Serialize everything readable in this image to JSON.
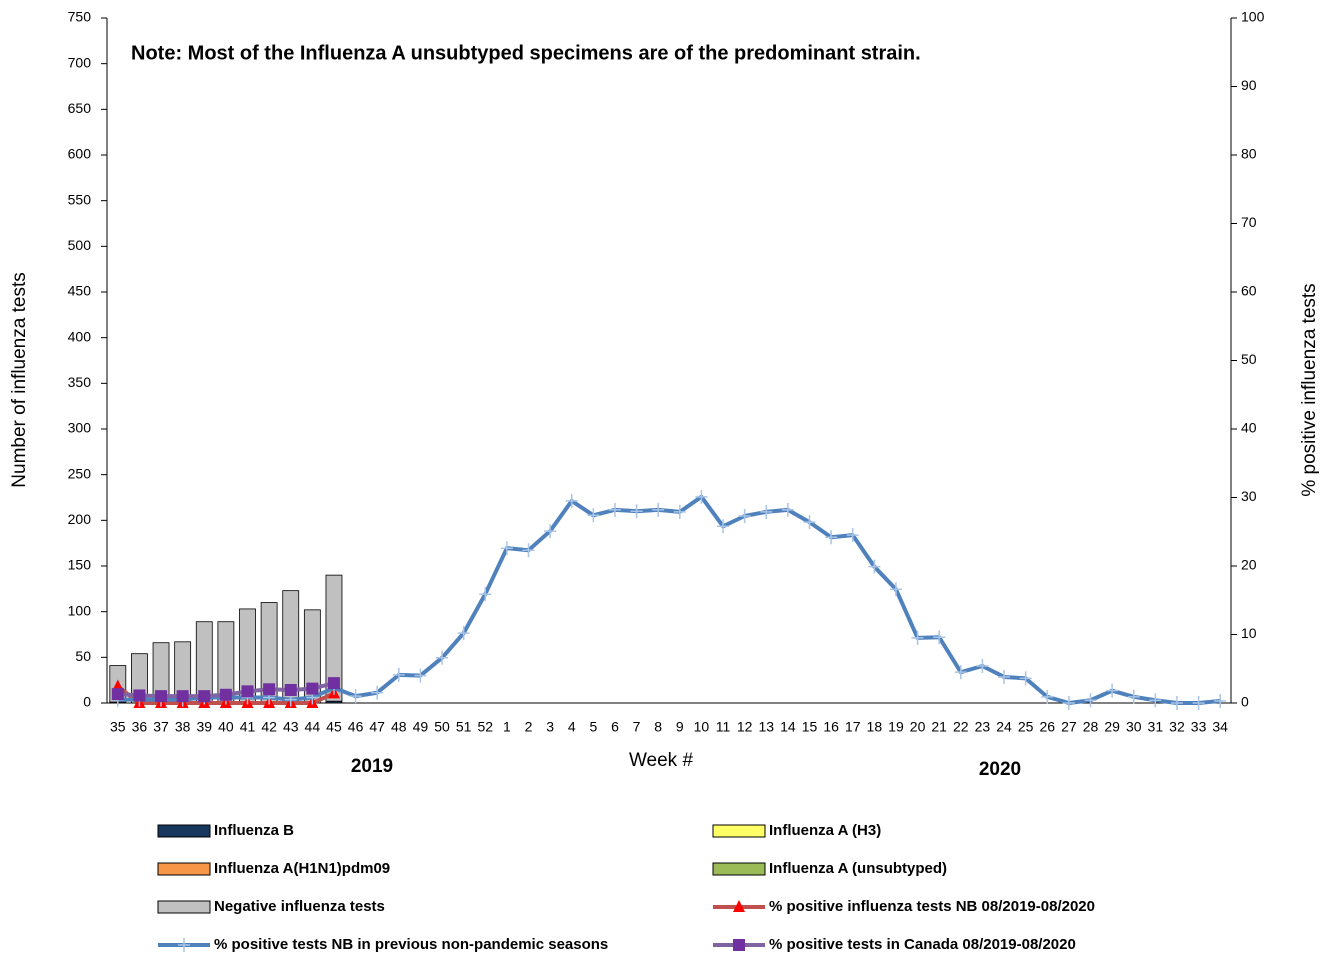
{
  "chart_data": {
    "type": "bar",
    "annotations": [
      "Note: Most of the  Influenza A unsubtyped specimens are of the predominant strain.",
      "2019",
      "2020"
    ],
    "x_label": "Week #",
    "y_label": "Number of influenza tests",
    "y2_label": "% positive influenza tests",
    "categories": [
      "35",
      "36",
      "37",
      "38",
      "39",
      "40",
      "41",
      "42",
      "43",
      "44",
      "45",
      "46",
      "47",
      "48",
      "49",
      "50",
      "51",
      "52",
      "1",
      "2",
      "3",
      "4",
      "5",
      "6",
      "7",
      "8",
      "9",
      "10",
      "11",
      "12",
      "13",
      "14",
      "15",
      "16",
      "17",
      "18",
      "19",
      "20",
      "21",
      "22",
      "23",
      "24",
      "25",
      "26",
      "27",
      "28",
      "29",
      "30",
      "31",
      "32",
      "33",
      "34"
    ],
    "ylim": [
      0,
      750
    ],
    "yticks": [
      0,
      50,
      100,
      150,
      200,
      250,
      300,
      350,
      400,
      450,
      500,
      550,
      600,
      650,
      700,
      750
    ],
    "y2lim": [
      0,
      100
    ],
    "y2ticks": [
      0,
      10,
      20,
      30,
      40,
      50,
      60,
      70,
      80,
      90,
      100
    ],
    "stacked": true,
    "series": [
      {
        "name": "Influenza B",
        "color": "#17375e",
        "values": [
          1,
          0,
          0,
          0,
          0,
          0,
          0,
          0,
          0,
          0,
          2,
          null,
          null,
          null,
          null,
          null,
          null,
          null,
          null,
          null,
          null,
          null,
          null,
          null,
          null,
          null,
          null,
          null,
          null,
          null,
          null,
          null,
          null,
          null,
          null,
          null,
          null,
          null,
          null,
          null,
          null,
          null,
          null,
          null,
          null,
          null,
          null,
          null,
          null,
          null,
          null,
          null
        ]
      },
      {
        "name": "Influenza A (H3)",
        "color": "#ffff66",
        "values": [
          0,
          0,
          0,
          0,
          0,
          0,
          0,
          0,
          0,
          0,
          0,
          null,
          null,
          null,
          null,
          null,
          null,
          null,
          null,
          null,
          null,
          null,
          null,
          null,
          null,
          null,
          null,
          null,
          null,
          null,
          null,
          null,
          null,
          null,
          null,
          null,
          null,
          null,
          null,
          null,
          null,
          null,
          null,
          null,
          null,
          null,
          null,
          null,
          null,
          null,
          null,
          null
        ]
      },
      {
        "name": "Influenza A(H1N1)pdm09",
        "color": "#f79646",
        "values": [
          0,
          0,
          0,
          0,
          0,
          0,
          0,
          0,
          0,
          0,
          0,
          null,
          null,
          null,
          null,
          null,
          null,
          null,
          null,
          null,
          null,
          null,
          null,
          null,
          null,
          null,
          null,
          null,
          null,
          null,
          null,
          null,
          null,
          null,
          null,
          null,
          null,
          null,
          null,
          null,
          null,
          null,
          null,
          null,
          null,
          null,
          null,
          null,
          null,
          null,
          null,
          null
        ]
      },
      {
        "name": "Influenza A (unsubtyped)",
        "color": "#9bbb59",
        "values": [
          0,
          0,
          0,
          0,
          0,
          0,
          0,
          0,
          0,
          0,
          0,
          null,
          null,
          null,
          null,
          null,
          null,
          null,
          null,
          null,
          null,
          null,
          null,
          null,
          null,
          null,
          null,
          null,
          null,
          null,
          null,
          null,
          null,
          null,
          null,
          null,
          null,
          null,
          null,
          null,
          null,
          null,
          null,
          null,
          null,
          null,
          null,
          null,
          null,
          null,
          null,
          null
        ]
      },
      {
        "name": "Negative influenza tests",
        "color": "#c0c0c0",
        "values": [
          40,
          54,
          66,
          67,
          89,
          89,
          103,
          110,
          123,
          102,
          138,
          null,
          null,
          null,
          null,
          null,
          null,
          null,
          null,
          null,
          null,
          null,
          null,
          null,
          null,
          null,
          null,
          null,
          null,
          null,
          null,
          null,
          null,
          null,
          null,
          null,
          null,
          null,
          null,
          null,
          null,
          null,
          null,
          null,
          null,
          null,
          null,
          null,
          null,
          null,
          null,
          null
        ]
      },
      {
        "name": "% positive influenza tests NB 08/2019-08/2020",
        "type": "line",
        "axis": "y2",
        "color": "#c0504d",
        "marker": "triangle",
        "marker_color": "#ff0000",
        "values": [
          2.4,
          0,
          0,
          0,
          0,
          0,
          0,
          0,
          0,
          0,
          1.4,
          null,
          null,
          null,
          null,
          null,
          null,
          null,
          null,
          null,
          null,
          null,
          null,
          null,
          null,
          null,
          null,
          null,
          null,
          null,
          null,
          null,
          null,
          null,
          null,
          null,
          null,
          null,
          null,
          null,
          null,
          null,
          null,
          null,
          null,
          null,
          null,
          null,
          null,
          null,
          null,
          null
        ]
      },
      {
        "name": "% positive tests NB in previous non-pandemic seasons",
        "type": "line",
        "axis": "y2",
        "color": "#4f81bd",
        "marker": "plus",
        "marker_color": "#a8c4e6",
        "values": [
          0.5,
          0.5,
          0.5,
          0.5,
          0.8,
          0.8,
          0.8,
          0.8,
          0.5,
          0.8,
          2.2,
          1.0,
          1.5,
          4.1,
          4.0,
          6.6,
          10.2,
          15.9,
          22.6,
          22.3,
          25.1,
          29.5,
          27.4,
          28.2,
          28.0,
          28.2,
          27.9,
          30.1,
          25.8,
          27.3,
          27.9,
          28.2,
          26.4,
          24.2,
          24.5,
          19.9,
          16.6,
          9.5,
          9.6,
          4.5,
          5.4,
          3.8,
          3.6,
          0.9,
          0,
          0.4,
          1.8,
          0.9,
          0.4,
          0,
          0,
          0.3
        ]
      },
      {
        "name": "% positive tests  in Canada 08/2019-08/2020",
        "type": "line",
        "axis": "y2",
        "color": "#8064a2",
        "marker": "square",
        "marker_color": "#7030a0",
        "values": [
          1.3,
          1.1,
          1.0,
          1.0,
          1.0,
          1.2,
          1.7,
          2.0,
          1.9,
          2.1,
          2.9,
          null,
          null,
          null,
          null,
          null,
          null,
          null,
          null,
          null,
          null,
          null,
          null,
          null,
          null,
          null,
          null,
          null,
          null,
          null,
          null,
          null,
          null,
          null,
          null,
          null,
          null,
          null,
          null,
          null,
          null,
          null,
          null,
          null,
          null,
          null,
          null,
          null,
          null,
          null,
          null,
          null
        ]
      }
    ]
  }
}
